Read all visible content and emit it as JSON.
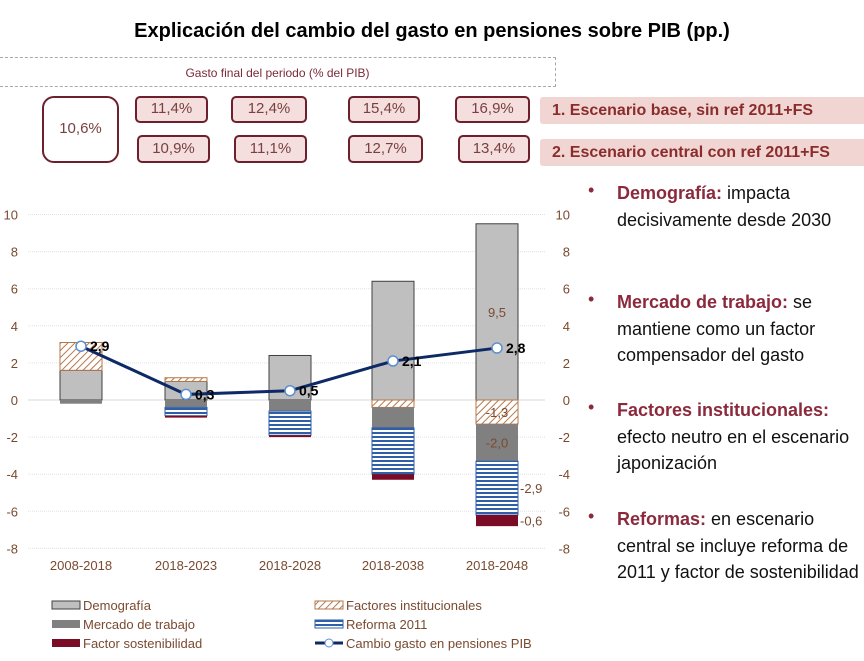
{
  "title": "Explicación del cambio del gasto en pensiones sobre PIB (pp.)",
  "gasto_label": "Gasto final del periodo (% del PIB)",
  "initial_value": "10,6%",
  "scenario1": {
    "label": "1. Escenario base, sin ref 2011+FS",
    "values": [
      "11,4%",
      "12,4%",
      "15,4%",
      "16,9%"
    ]
  },
  "scenario2": {
    "label": "2. Escenario central con ref 2011+FS",
    "values": [
      "10,9%",
      "11,1%",
      "12,7%",
      "13,4%"
    ]
  },
  "bullets": [
    {
      "head": "Demografía:",
      "text": " impacta decisivamente desde 2030"
    },
    {
      "head": "Mercado de trabajo:",
      "text": " se mantiene como un factor compensador del gasto"
    },
    {
      "head": "Factores institucionales:",
      "text": " efecto neutro en el escenario japonización"
    },
    {
      "head": "Reformas:",
      "text": " en escenario central se incluye reforma de 2011 y factor de sostenibilidad"
    }
  ],
  "colors": {
    "demografia": "#bfbfbf",
    "mercado": "#808080",
    "factor": "#7b0c25",
    "instit": "#b5784c",
    "reforma": "#2f5fa8",
    "line": "#0d2a66",
    "accent": "#8b2a3c"
  },
  "chart_data": {
    "type": "bar",
    "stacked": true,
    "categories": [
      "2008-2018",
      "2018-2023",
      "2018-2028",
      "2018-2038",
      "2018-2048"
    ],
    "ylim": [
      -8,
      10
    ],
    "yticks": [
      "10",
      "8",
      "6",
      "4",
      "2",
      "0",
      "-2",
      "-4",
      "-6",
      "-8"
    ],
    "grid": true,
    "legend_position": "bottom",
    "series": [
      {
        "name": "Demografía",
        "values": [
          1.6,
          1.0,
          2.4,
          6.4,
          9.5
        ],
        "labels": [
          "",
          "",
          "",
          "",
          "9,5"
        ]
      },
      {
        "name": "Factores institucionales",
        "values": [
          1.5,
          0.2,
          0,
          -0.4,
          -1.3
        ],
        "labels": [
          "",
          "",
          "",
          "",
          "-1,3"
        ]
      },
      {
        "name": "Mercado de trabajo",
        "values": [
          -0.2,
          -0.4,
          -0.6,
          -1.1,
          -2.0
        ],
        "labels": [
          "",
          "",
          "",
          "",
          "-2,0"
        ]
      },
      {
        "name": "Reforma 2011",
        "values": [
          0,
          -0.45,
          -1.3,
          -2.5,
          -2.9
        ],
        "labels": [
          "",
          "",
          "",
          "",
          "-2,9"
        ]
      },
      {
        "name": "Factor sostenibilidad",
        "values": [
          0,
          -0.1,
          -0.1,
          -0.3,
          -0.6
        ],
        "labels": [
          "",
          "",
          "",
          "",
          "-0,6"
        ]
      }
    ],
    "line": {
      "name": "Cambio gasto en pensiones PIB",
      "values": [
        2.9,
        0.3,
        0.5,
        2.1,
        2.8
      ],
      "labels": [
        "2,9",
        "0,3",
        "0,5",
        "2,1",
        "2,8"
      ]
    }
  }
}
